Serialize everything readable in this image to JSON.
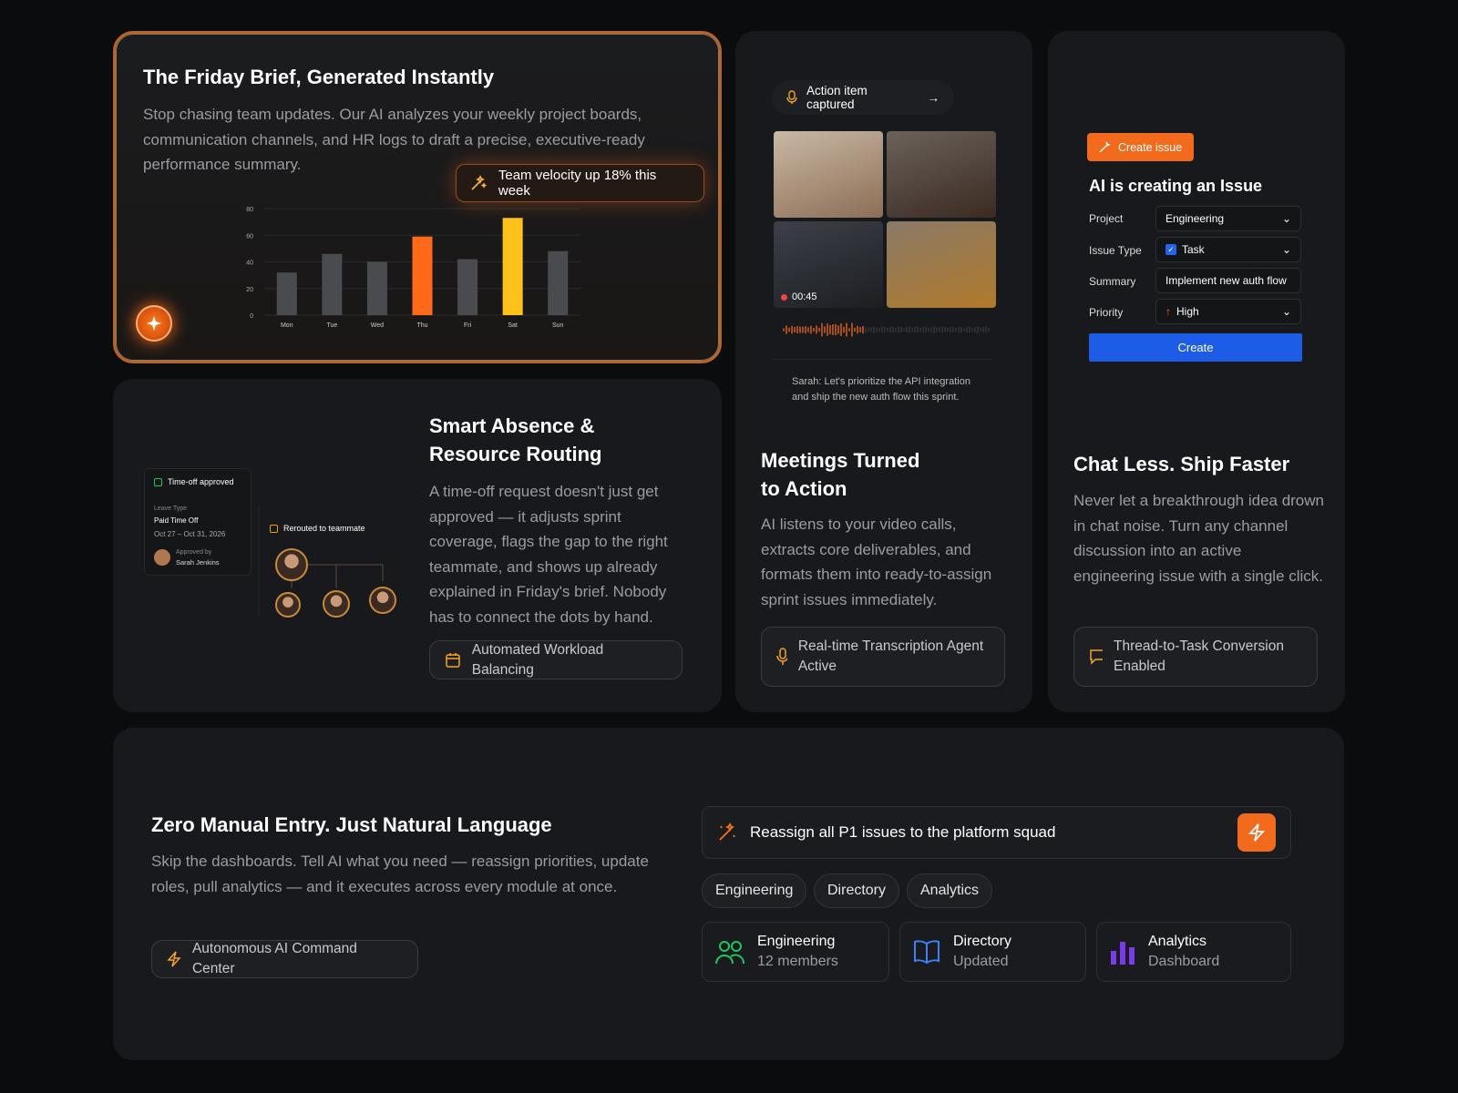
{
  "friday_brief": {
    "title": "The Friday Brief, Generated Instantly",
    "description": "Stop chasing team updates. Our AI analyzes your weekly project boards, communication channels, and HR logs to draft a precise, executive-ready performance summary.",
    "badge": "Team velocity up 18% this week",
    "chart": {
      "type": "bar",
      "categories": [
        "Mon",
        "Tue",
        "Wed",
        "Thu",
        "Fri",
        "Sat",
        "Sun"
      ],
      "values": [
        32,
        46,
        40,
        59,
        42,
        73,
        48
      ],
      "colors": [
        "#4a4b4e",
        "#4a4b4e",
        "#4a4b4e",
        "#ff6a1a",
        "#4a4b4e",
        "#ffc21a",
        "#4a4b4e"
      ],
      "ylim": [
        0,
        80
      ],
      "yticks": [
        0,
        20,
        40,
        60,
        80
      ],
      "grid": true
    }
  },
  "absence": {
    "title": "Smart Absence & Resource Routing",
    "description": "A time-off request doesn't just get approved — it adjusts sprint coverage, flags the gap to the right teammate, and shows up already explained in Friday's brief. Nobody has to connect the dots by hand.",
    "tag": "Automated Workload Balancing",
    "approval": {
      "status": "Time-off approved",
      "leave_type_label": "Leave Type",
      "leave_type": "Paid Time Off",
      "dates": "Oct 27 – Oct 31, 2026",
      "approved_by_label": "Approved by",
      "approver": "Sarah Jenkins"
    },
    "reroute": "Rerouted to teammate"
  },
  "meetings": {
    "caption": "Action item captured",
    "timer": "00:45",
    "transcript": "Sarah: Let's prioritize the API integration and ship the new auth flow this sprint.",
    "title": "Meetings Turned to Action",
    "description": "AI listens to your video calls, extracts core deliverables, and formats them into ready-to-assign sprint issues immediately.",
    "tag": "Real-time Transcription Agent Active"
  },
  "chat": {
    "button": "Create issue",
    "form_title": "AI is creating an Issue",
    "fields": [
      {
        "label": "Project",
        "value": "Engineering"
      },
      {
        "label": "Issue Type",
        "value": "Task"
      },
      {
        "label": "Summary",
        "value": "Implement new auth flow"
      },
      {
        "label": "Priority",
        "value": "High"
      }
    ],
    "submit": "Create",
    "title": "Chat Less. Ship Faster",
    "description": "Never let a breakthrough idea drown in chat noise. Turn any channel discussion into an active engineering issue with a single click.",
    "tag": "Thread-to-Task Conversion Enabled"
  },
  "command": {
    "title": "Zero Manual Entry. Just Natural Language",
    "description": "Skip the dashboards. Tell AI what you need — reassign priorities, update roles, pull analytics — and it executes across every module at once.",
    "tag": "Autonomous AI Command Center",
    "prompt": "Reassign all P1 issues to the platform squad",
    "filters": [
      "Engineering",
      "Directory",
      "Analytics"
    ],
    "modules": [
      {
        "name": "Engineering",
        "detail": "12 members"
      },
      {
        "name": "Directory",
        "detail": "Updated"
      },
      {
        "name": "Analytics",
        "detail": "Dashboard"
      }
    ]
  }
}
